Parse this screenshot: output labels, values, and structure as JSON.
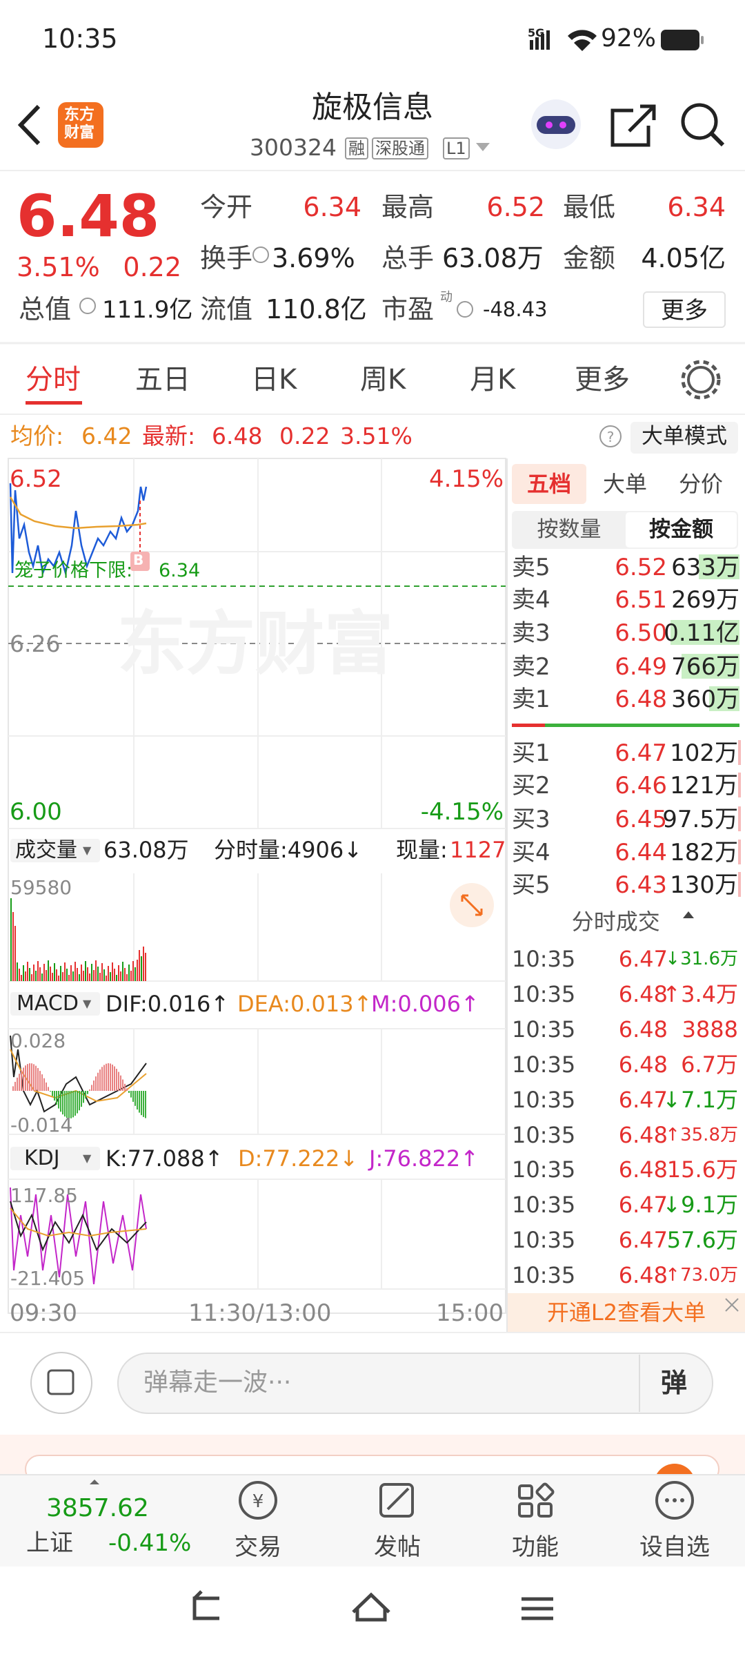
{
  "status_bar": {
    "time": "10:35",
    "network": "5G",
    "battery": "92%"
  },
  "header": {
    "logo": [
      "东方",
      "财富"
    ],
    "title": "旋极信息",
    "code": "300324",
    "tags": [
      "融",
      "深股通",
      "L1"
    ]
  },
  "quote": {
    "price": "6.48",
    "change_pct": "3.51%",
    "change": "0.22",
    "fields": [
      {
        "label": "今开",
        "value": "6.34"
      },
      {
        "label": "最高",
        "value": "6.52"
      },
      {
        "label": "最低",
        "value": "6.34"
      },
      {
        "label": "换手",
        "value": "3.69%"
      },
      {
        "label": "总手",
        "value": "63.08万"
      },
      {
        "label": "金额",
        "value": "4.05亿"
      },
      {
        "label": "总值",
        "value": "111.9亿"
      },
      {
        "label": "流值",
        "value": "110.8亿"
      },
      {
        "label": "市盈",
        "superscript": "动",
        "value": "-48.43"
      }
    ],
    "more": "更多"
  },
  "tabs": [
    "分时",
    "五日",
    "日K",
    "周K",
    "月K",
    "更多"
  ],
  "summary": {
    "avg_label": "均价:",
    "avg": "6.42",
    "latest_label": "最新:",
    "latest": "6.48",
    "change": "0.22",
    "change_pct": "3.51%",
    "mode_button": "大单模式"
  },
  "price_chart": {
    "high": "6.52",
    "high_pct": "4.15%",
    "limit_label": "笼子价格下限:",
    "limit": "6.34",
    "base": "6.26",
    "low": "6.00",
    "low_pct": "-4.15%",
    "watermark": "东方财富",
    "marker": "B"
  },
  "volume": {
    "selector": "成交量",
    "total": "63.08万",
    "tick": "分时量:4906↓",
    "current_label": "现量:",
    "current": "1127",
    "max": "59580"
  },
  "macd": {
    "selector": "MACD",
    "dif": "DIF:0.016↑",
    "dea": "DEA:0.013↑",
    "m": "M:0.006↑",
    "max": "0.028",
    "min": "-0.014"
  },
  "kdj": {
    "selector": "KDJ",
    "k": "K:77.088↑",
    "d": "D:77.222↓",
    "j": "J:76.822↑",
    "max": "117.85",
    "min": "-21.405"
  },
  "time_axis": [
    "09:30",
    "11:30/13:00",
    "15:00"
  ],
  "order_book": {
    "tabs": [
      "五档",
      "大单",
      "分价"
    ],
    "modes": [
      "按数量",
      "按金额"
    ],
    "asks": [
      {
        "label": "卖5",
        "price": "6.52",
        "volume": "633万"
      },
      {
        "label": "卖4",
        "price": "6.51",
        "volume": "269万"
      },
      {
        "label": "卖3",
        "price": "6.50",
        "volume": "0.11亿"
      },
      {
        "label": "卖2",
        "price": "6.49",
        "volume": "766万"
      },
      {
        "label": "卖1",
        "price": "6.48",
        "volume": "360万"
      }
    ],
    "bids": [
      {
        "label": "买1",
        "price": "6.47",
        "volume": "102万"
      },
      {
        "label": "买2",
        "price": "6.46",
        "volume": "121万"
      },
      {
        "label": "买3",
        "price": "6.45",
        "volume": "97.5万"
      },
      {
        "label": "买4",
        "price": "6.44",
        "volume": "182万"
      },
      {
        "label": "买5",
        "price": "6.43",
        "volume": "130万"
      }
    ]
  },
  "trades": {
    "title": "分时成交",
    "rows": [
      {
        "time": "10:35",
        "price": "6.47",
        "direction": "↓",
        "volume": "31.6万",
        "color": "#179b17"
      },
      {
        "time": "10:35",
        "price": "6.48",
        "direction": "↑",
        "volume": "3.4万",
        "color": "#e5302f"
      },
      {
        "time": "10:35",
        "price": "6.48",
        "volume": "3888",
        "color": "#e5302f"
      },
      {
        "time": "10:35",
        "price": "6.48",
        "volume": "6.7万",
        "color": "#e5302f"
      },
      {
        "time": "10:35",
        "price": "6.47",
        "direction": "↓",
        "volume": "7.1万",
        "color": "#179b17"
      },
      {
        "time": "10:35",
        "price": "6.48",
        "direction": "↑",
        "volume": "35.8万",
        "color": "#e5302f"
      },
      {
        "time": "10:35",
        "price": "6.48",
        "volume": "15.6万",
        "color": "#e5302f"
      },
      {
        "time": "10:35",
        "price": "6.47",
        "direction": "↓",
        "volume": "9.1万",
        "color": "#179b17"
      },
      {
        "time": "10:35",
        "price": "6.47",
        "volume": "57.6万",
        "color": "#179b17"
      },
      {
        "time": "10:35",
        "price": "6.48",
        "direction": "↑",
        "volume": "73.0万",
        "color": "#e5302f"
      }
    ]
  },
  "l2_banner": "开通L2查看大单",
  "danmaku": {
    "placeholder": "弹幕走一波···",
    "button": "弹"
  },
  "bottom_nav": {
    "index": {
      "value": "3857.62",
      "name": "上证",
      "change": "-0.41%"
    },
    "items": [
      "交易",
      "发帖",
      "功能",
      "设自选"
    ]
  }
}
